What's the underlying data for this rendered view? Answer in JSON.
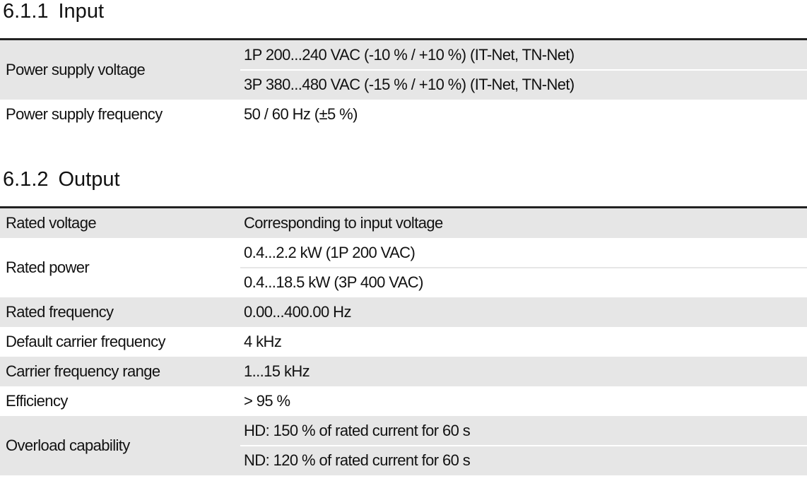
{
  "sections": [
    {
      "number": "6.1.1",
      "title": "Input",
      "rows": [
        {
          "label": "Power supply voltage",
          "values": [
            "1P 200...240 VAC (-10 % / +10 %) (IT-Net, TN-Net)",
            "3P 380...480 VAC (-15 % / +10 %) (IT-Net, TN-Net)"
          ]
        },
        {
          "label": "Power supply frequency",
          "values": [
            "50 / 60 Hz (±5 %)"
          ]
        }
      ]
    },
    {
      "number": "6.1.2",
      "title": "Output",
      "rows": [
        {
          "label": "Rated voltage",
          "values": [
            "Corresponding to input voltage"
          ]
        },
        {
          "label": "Rated power",
          "values": [
            "0.4...2.2 kW (1P 200 VAC)",
            "0.4...18.5 kW (3P 400 VAC)"
          ]
        },
        {
          "label": "Rated frequency",
          "values": [
            "0.00...400.00 Hz"
          ]
        },
        {
          "label": "Default carrier frequency",
          "values": [
            "4 kHz"
          ]
        },
        {
          "label": "Carrier frequency range",
          "values": [
            "1...15 kHz"
          ]
        },
        {
          "label": "Efficiency",
          "values": [
            "> 95 %"
          ]
        },
        {
          "label": "Overload capability",
          "values": [
            "HD: 150 % of rated current for 60 s",
            "ND: 120 % of rated current for 60 s"
          ]
        }
      ]
    }
  ]
}
